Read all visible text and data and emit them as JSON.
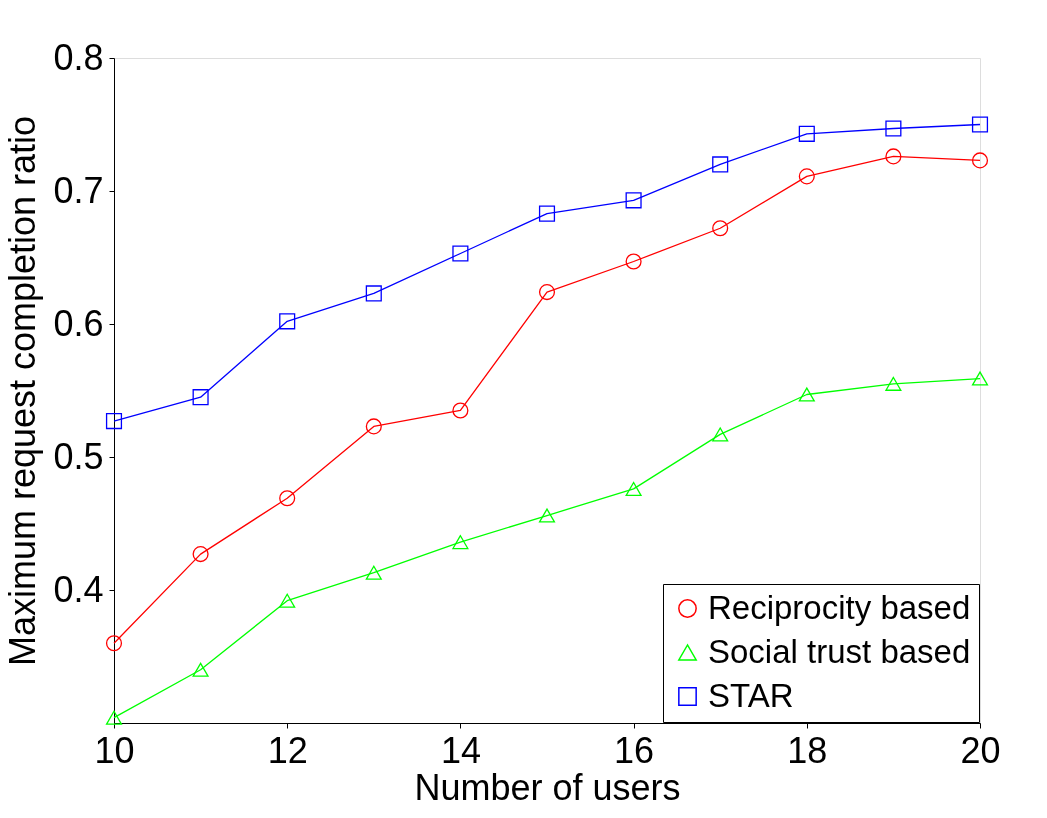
{
  "chart_data": {
    "type": "line",
    "xlabel": "Number of users",
    "ylabel": "Maximum request completion ratio",
    "x": [
      10,
      11,
      12,
      13,
      14,
      15,
      16,
      17,
      18,
      19,
      20
    ],
    "series": [
      {
        "name": "Reciprocity based",
        "color": "#ff0000",
        "marker": "circle",
        "values": [
          0.36,
          0.427,
          0.469,
          0.523,
          0.535,
          0.624,
          0.647,
          0.672,
          0.711,
          0.726,
          0.723
        ]
      },
      {
        "name": "Social trust based",
        "color": "#00ff00",
        "marker": "triangle",
        "values": [
          0.304,
          0.34,
          0.392,
          0.413,
          0.436,
          0.456,
          0.476,
          0.517,
          0.547,
          0.555,
          0.559
        ]
      },
      {
        "name": "STAR",
        "color": "#0000ff",
        "marker": "square",
        "values": [
          0.527,
          0.545,
          0.602,
          0.623,
          0.653,
          0.683,
          0.693,
          0.72,
          0.743,
          0.747,
          0.75
        ]
      }
    ],
    "xlim": [
      10,
      20
    ],
    "xticks": [
      10,
      12,
      14,
      16,
      18,
      20
    ],
    "ylim": [
      0.3,
      0.8
    ],
    "yticks": [
      0.4,
      0.5,
      0.6,
      0.7,
      0.8
    ],
    "grid": false,
    "legend": "bottom right"
  }
}
